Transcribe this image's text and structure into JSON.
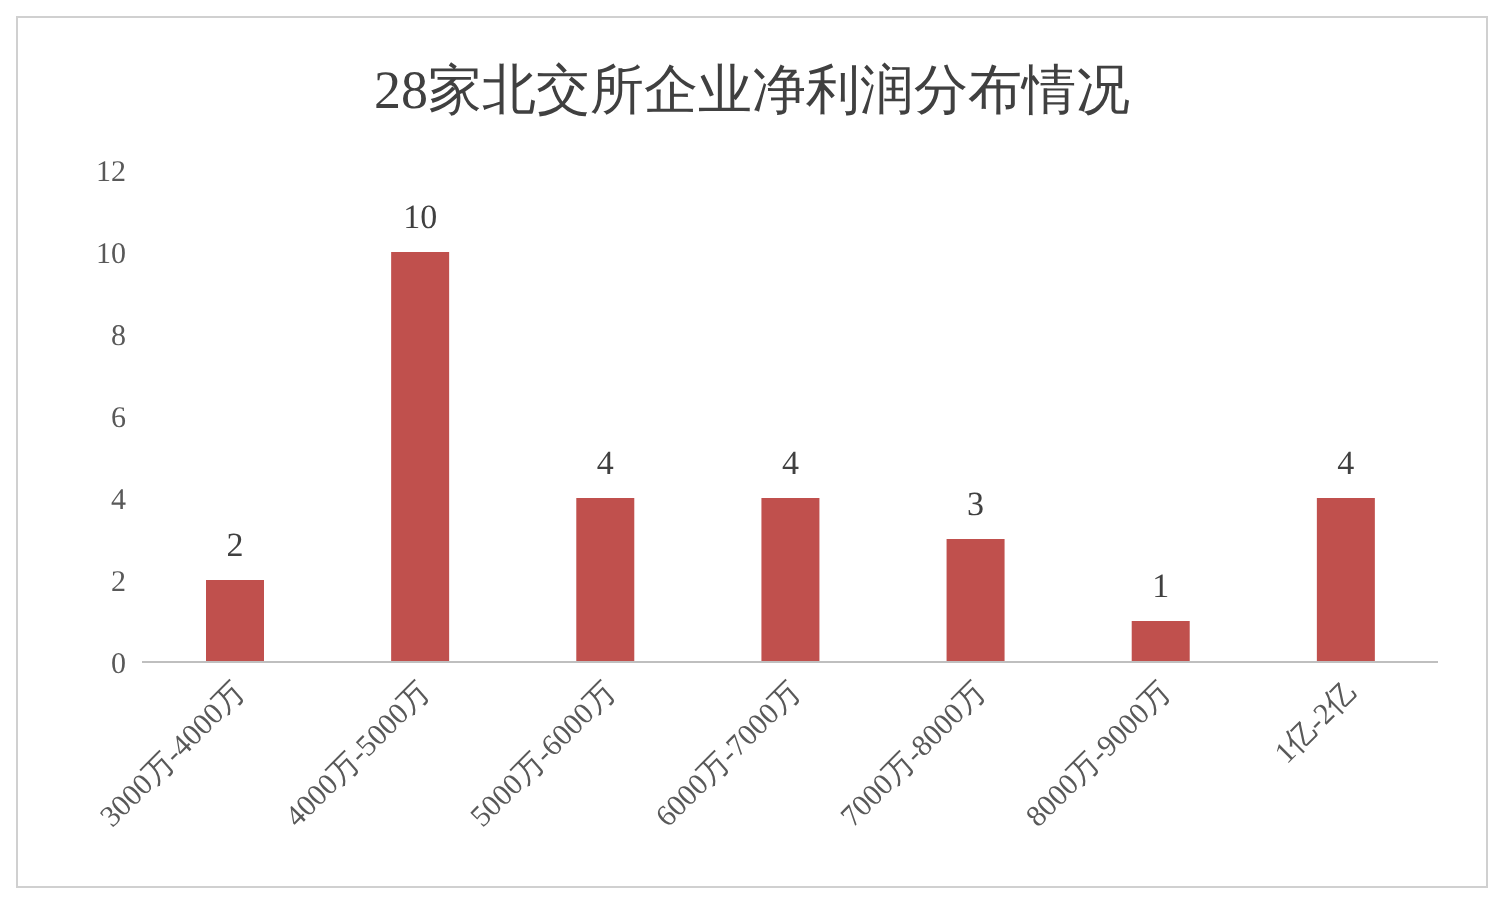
{
  "chart_data": {
    "type": "bar",
    "title": "28家北交所企业净利润分布情况",
    "categories": [
      "3000万-4000万",
      "4000万-5000万",
      "5000万-6000万",
      "6000万-7000万",
      "7000万-8000万",
      "8000万-9000万",
      "1亿-2亿"
    ],
    "values": [
      2,
      10,
      4,
      4,
      3,
      1,
      4
    ],
    "color": "#c0504d",
    "ylim": [
      0,
      12
    ],
    "yticks": [
      0,
      2,
      4,
      6,
      8,
      10,
      12
    ],
    "grid": false,
    "data_labels": true,
    "legend": false
  }
}
